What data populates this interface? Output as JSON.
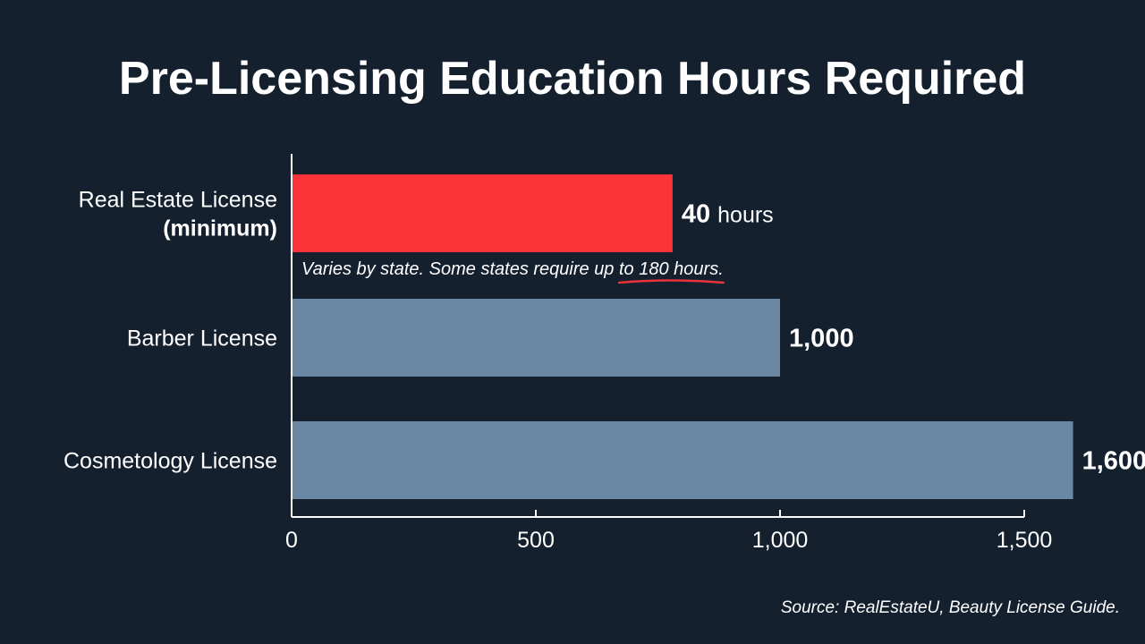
{
  "colors": {
    "background": "#15202f",
    "highlight_bar": "#fd333a",
    "bar": "#6a88a3",
    "axis": "#ffffff",
    "annotation_underline": "#e8333b"
  },
  "chart_data": {
    "type": "bar",
    "orientation": "horizontal",
    "title": "Pre-Licensing Education Hours Required",
    "categories": [
      "Real Estate License\n(minimum)",
      "Barber License",
      "Cosmetology License"
    ],
    "values": [
      40,
      1000,
      1600
    ],
    "value_labels": [
      {
        "number": "40",
        "unit": "hours"
      },
      {
        "number": "1,000",
        "unit": ""
      },
      {
        "number": "1,600",
        "unit": ""
      }
    ],
    "highlighted_index": 0,
    "xlim": [
      0,
      1500
    ],
    "x_ticks": [
      0,
      500,
      1000,
      1500
    ],
    "x_tick_labels": [
      "0",
      "500",
      "1,000",
      "1,500"
    ],
    "xlabel": "",
    "ylabel": "",
    "grid": false,
    "legend": "none",
    "annotation": {
      "prefix": "Varies by state. Some states require up ",
      "emphasis": "to 180 hours."
    },
    "source": "Source: RealEstateU, Beauty License Guide."
  }
}
